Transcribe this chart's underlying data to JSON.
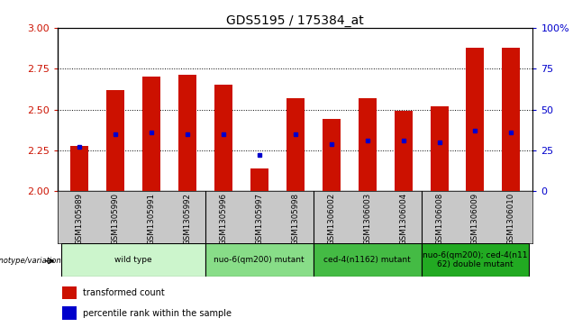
{
  "title": "GDS5195 / 175384_at",
  "samples": [
    "GSM1305989",
    "GSM1305990",
    "GSM1305991",
    "GSM1305992",
    "GSM1305996",
    "GSM1305997",
    "GSM1305998",
    "GSM1306002",
    "GSM1306003",
    "GSM1306004",
    "GSM1306008",
    "GSM1306009",
    "GSM1306010"
  ],
  "bar_tops": [
    2.28,
    2.62,
    2.7,
    2.71,
    2.65,
    2.14,
    2.57,
    2.44,
    2.57,
    2.49,
    2.52,
    2.88,
    2.88
  ],
  "blue_markers": [
    2.27,
    2.35,
    2.36,
    2.35,
    2.35,
    2.22,
    2.35,
    2.29,
    2.31,
    2.31,
    2.3,
    2.37,
    2.36
  ],
  "bar_bottom": 2.0,
  "ylim_left": [
    2.0,
    3.0
  ],
  "ylim_right": [
    0,
    100
  ],
  "yticks_left": [
    2.0,
    2.25,
    2.5,
    2.75,
    3.0
  ],
  "yticks_right": [
    0,
    25,
    50,
    75,
    100
  ],
  "bar_color": "#cc1100",
  "marker_color": "#0000cc",
  "background_color": "#ffffff",
  "plot_bg_color": "#ffffff",
  "genotype_groups": [
    {
      "label": "wild type",
      "start": 0,
      "end": 3,
      "color": "#ccf5cc"
    },
    {
      "label": "nuo-6(qm200) mutant",
      "start": 4,
      "end": 6,
      "color": "#88dd88"
    },
    {
      "label": "ced-4(n1162) mutant",
      "start": 7,
      "end": 9,
      "color": "#44bb44"
    },
    {
      "label": "nuo-6(qm200); ced-4(n11\n62) double mutant",
      "start": 10,
      "end": 12,
      "color": "#22aa22"
    }
  ],
  "ylabel_left_color": "#cc1100",
  "ylabel_right_color": "#0000cc",
  "title_fontsize": 10,
  "bar_width": 0.5,
  "label_gray": "#c8c8c8"
}
